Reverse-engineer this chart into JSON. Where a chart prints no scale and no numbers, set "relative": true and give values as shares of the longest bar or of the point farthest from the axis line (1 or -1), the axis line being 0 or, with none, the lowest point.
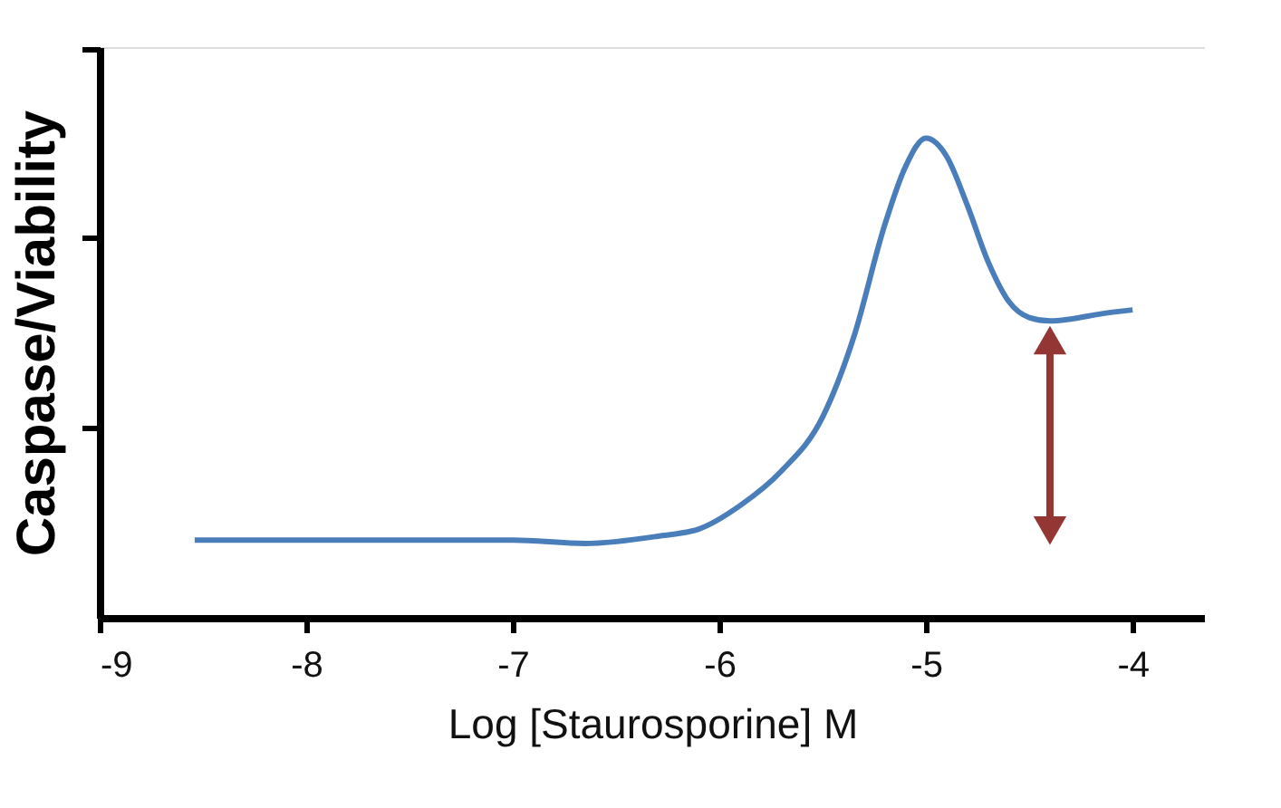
{
  "chart_data": {
    "type": "line",
    "xlabel": "Log [Staurosporine] M",
    "ylabel": "Caspase/Viability",
    "relative": true,
    "xlim": [
      -9,
      -3.65
    ],
    "xticks": [
      -9,
      -8,
      -7,
      -6,
      -5,
      -4
    ],
    "grid": false,
    "marker": "none",
    "line_style": "solid",
    "tick_labels": "x",
    "x": [
      -8.54,
      -8,
      -7,
      -6.65,
      -6.3,
      -6.1,
      -5.9,
      -5.7,
      -5.5,
      -5.35,
      -5.2,
      -5.1,
      -5.0,
      -4.9,
      -4.8,
      -4.7,
      -4.6,
      -4.5,
      -4.4,
      -4.3,
      -4.15,
      -4.0
    ],
    "series": [
      {
        "color": "#4a7ebb",
        "values": [
          0.162,
          0.162,
          0.162,
          0.155,
          0.17,
          0.185,
          0.234,
          0.306,
          0.419,
          0.585,
          0.819,
          0.94,
          1,
          0.962,
          0.86,
          0.743,
          0.66,
          0.626,
          0.619,
          0.623,
          0.634,
          0.642
        ]
      }
    ]
  }
}
